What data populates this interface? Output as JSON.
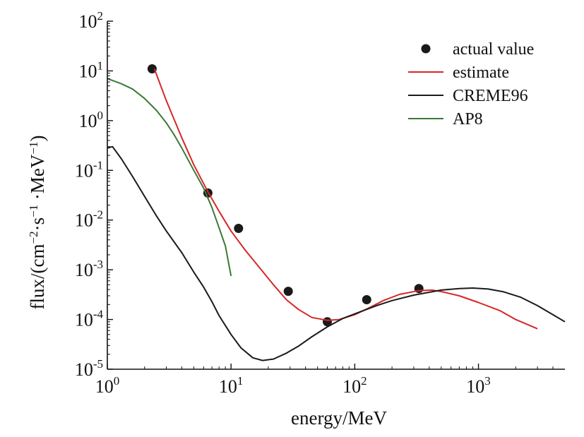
{
  "chart_data": {
    "type": "line",
    "x_scale": "log",
    "y_scale": "log",
    "xlim": [
      1,
      5000
    ],
    "ylim": [
      1e-05,
      100
    ],
    "x_ticks": [
      {
        "value": 1,
        "base": "10",
        "exp": "0"
      },
      {
        "value": 10,
        "base": "10",
        "exp": "1"
      },
      {
        "value": 100,
        "base": "10",
        "exp": "2"
      },
      {
        "value": 1000,
        "base": "10",
        "exp": "3"
      }
    ],
    "y_ticks": [
      {
        "value": 100,
        "base": "10",
        "exp": "2"
      },
      {
        "value": 10,
        "base": "10",
        "exp": "1"
      },
      {
        "value": 1,
        "base": "10",
        "exp": "0"
      },
      {
        "value": 0.1,
        "base": "10",
        "exp": "-1"
      },
      {
        "value": 0.01,
        "base": "10",
        "exp": "-2"
      },
      {
        "value": 0.001,
        "base": "10",
        "exp": "-3"
      },
      {
        "value": 0.0001,
        "base": "10",
        "exp": "-4"
      },
      {
        "value": 1e-05,
        "base": "10",
        "exp": "-5"
      }
    ],
    "xlabel": "energy/MeV",
    "ylabel": {
      "pre": "flux/(cm",
      "sup1": "−2",
      "mid1": "·s",
      "sup2": "−1",
      "mid2": " ·MeV",
      "sup3": "−1",
      "post": ")"
    },
    "grid": false,
    "legend_position": "top-right",
    "series": [
      {
        "name": "actual value",
        "kind": "scatter",
        "color": "#1a1a1a",
        "points": [
          [
            2.3,
            11
          ],
          [
            6.5,
            0.035
          ],
          [
            11.5,
            0.0068
          ],
          [
            29,
            0.00037
          ],
          [
            60,
            9e-05
          ],
          [
            125,
            0.00025
          ],
          [
            330,
            0.00042
          ]
        ]
      },
      {
        "name": "estimate",
        "kind": "line",
        "color": "#d62728",
        "points": [
          [
            2.4,
            11
          ],
          [
            3,
            2.5
          ],
          [
            4,
            0.45
          ],
          [
            5,
            0.13
          ],
          [
            6.5,
            0.037
          ],
          [
            8,
            0.015
          ],
          [
            10,
            0.006
          ],
          [
            13,
            0.0025
          ],
          [
            17,
            0.0011
          ],
          [
            22,
            0.0005
          ],
          [
            28,
            0.00025
          ],
          [
            35,
            0.00016
          ],
          [
            45,
            0.00011
          ],
          [
            60,
            9.65e-05
          ],
          [
            75,
            0.0001
          ],
          [
            100,
            0.000125
          ],
          [
            130,
            0.00017
          ],
          [
            170,
            0.00024
          ],
          [
            230,
            0.00032
          ],
          [
            330,
            0.00038
          ],
          [
            420,
            0.00039
          ],
          [
            500,
            0.000365
          ],
          [
            700,
            0.0003
          ],
          [
            1000,
            0.00022
          ],
          [
            1500,
            0.00015
          ],
          [
            2000,
            0.0001
          ],
          [
            3000,
            6.5e-05
          ]
        ]
      },
      {
        "name": "CREME96",
        "kind": "line",
        "color": "#1a1a1a",
        "points": [
          [
            1,
            0.28
          ],
          [
            1.1,
            0.3
          ],
          [
            1.3,
            0.17
          ],
          [
            1.6,
            0.075
          ],
          [
            2,
            0.03
          ],
          [
            2.5,
            0.012
          ],
          [
            3,
            0.006
          ],
          [
            4,
            0.0022
          ],
          [
            5,
            0.0009
          ],
          [
            6,
            0.00045
          ],
          [
            7,
            0.00023
          ],
          [
            8,
            0.00012
          ],
          [
            10,
            5e-05
          ],
          [
            12,
            2.7e-05
          ],
          [
            15,
            1.7e-05
          ],
          [
            18,
            1.5e-05
          ],
          [
            22,
            1.6e-05
          ],
          [
            28,
            2.1e-05
          ],
          [
            35,
            2.9e-05
          ],
          [
            45,
            4.5e-05
          ],
          [
            60,
            7.1e-05
          ],
          [
            80,
            0.000105
          ],
          [
            100,
            0.00013
          ],
          [
            150,
            0.00019
          ],
          [
            200,
            0.00024
          ],
          [
            300,
            0.00031
          ],
          [
            500,
            0.00039
          ],
          [
            700,
            0.00042
          ],
          [
            900,
            0.00043
          ],
          [
            1200,
            0.00041
          ],
          [
            1600,
            0.00036
          ],
          [
            2200,
            0.00028
          ],
          [
            3000,
            0.00019
          ],
          [
            4000,
            0.000125
          ],
          [
            5000,
            9e-05
          ]
        ]
      },
      {
        "name": "AP8",
        "kind": "line",
        "color": "#3a7a35",
        "points": [
          [
            1,
            7
          ],
          [
            1.3,
            5.5
          ],
          [
            1.6,
            4.3
          ],
          [
            2,
            2.8
          ],
          [
            2.5,
            1.6
          ],
          [
            3,
            0.9
          ],
          [
            3.5,
            0.5
          ],
          [
            4,
            0.28
          ],
          [
            5,
            0.1
          ],
          [
            6,
            0.044
          ],
          [
            7,
            0.018
          ],
          [
            8,
            0.007
          ],
          [
            9,
            0.003
          ],
          [
            10,
            0.00075
          ]
        ]
      }
    ]
  }
}
